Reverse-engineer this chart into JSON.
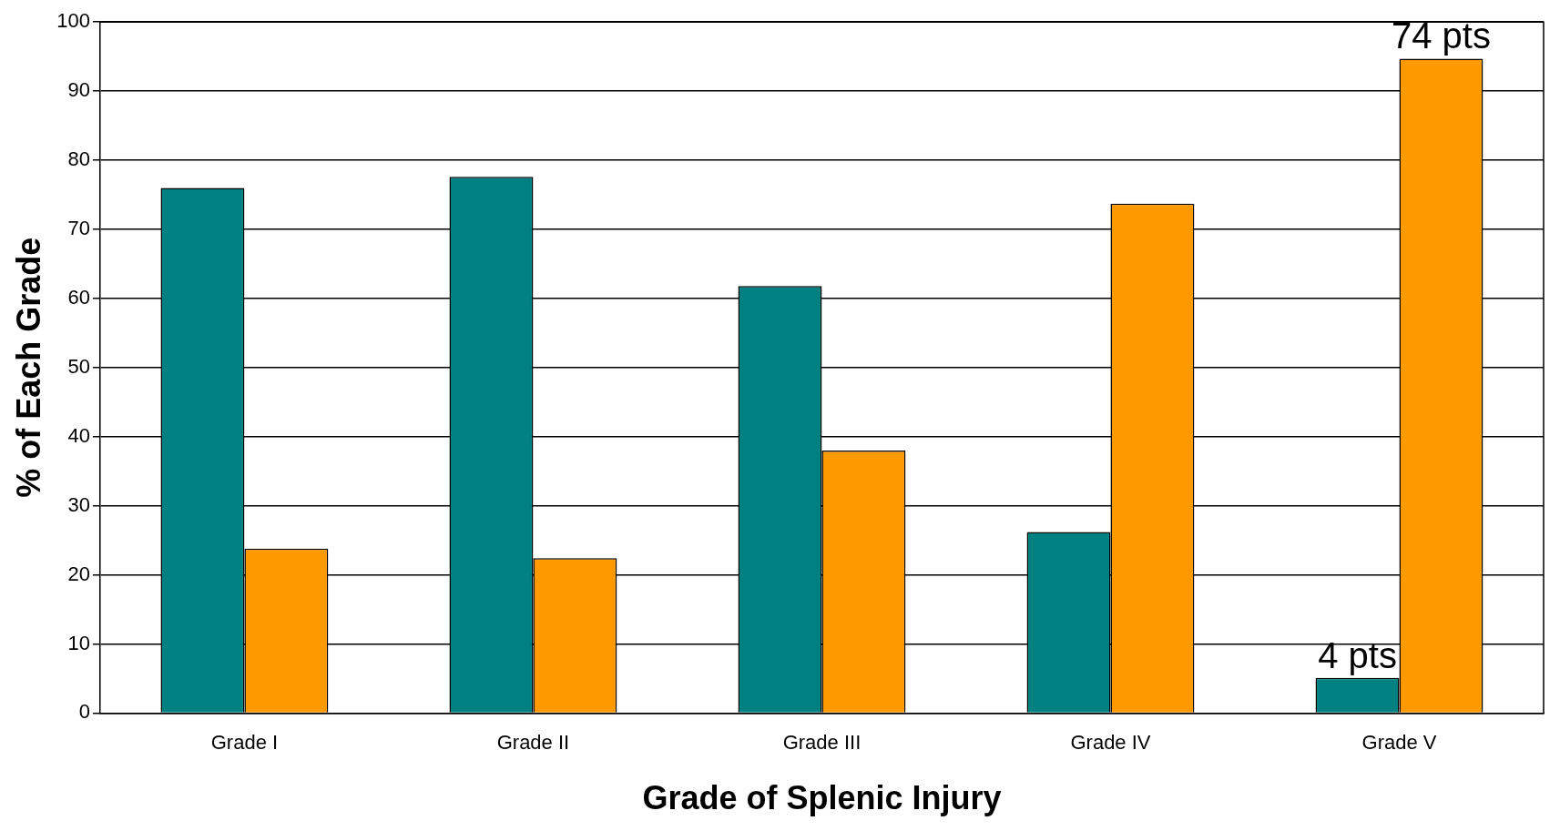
{
  "chart_data": {
    "type": "bar",
    "xlabel": "Grade of Splenic Injury",
    "ylabel": "% of Each Grade",
    "categories": [
      "Grade I",
      "Grade II",
      "Grade III",
      "Grade IV",
      "Grade V"
    ],
    "series": [
      {
        "color": "#008080",
        "values": [
          76,
          77.6,
          61.8,
          26.2,
          5.1
        ]
      },
      {
        "color": "#ff9900",
        "values": [
          23.8,
          22.4,
          38,
          73.7,
          94.7
        ]
      }
    ],
    "ylim": [
      0,
      100
    ],
    "yticks": [
      0,
      10,
      20,
      30,
      40,
      50,
      60,
      70,
      80,
      90,
      100
    ],
    "grid": "y",
    "legend": false,
    "annotations": [
      {
        "text": "74 pts",
        "x": "Grade V",
        "y": 94.7
      },
      {
        "text": "4 pts",
        "x": "Grade V",
        "y": 5.1
      }
    ]
  }
}
